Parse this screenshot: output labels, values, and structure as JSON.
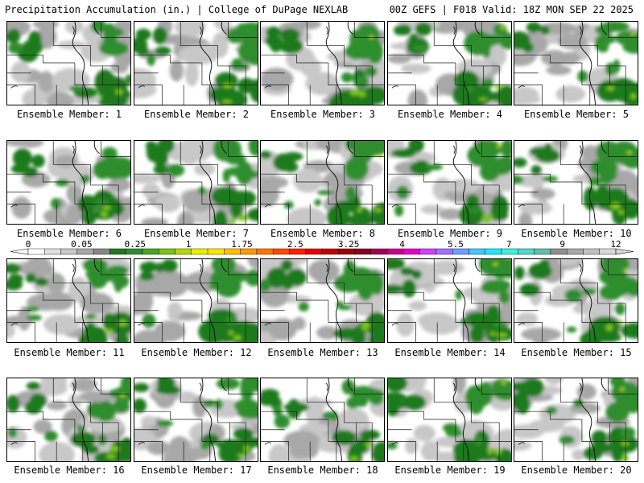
{
  "header": {
    "title_left": "Precipitation Accumulation (in.) | College of DuPage NEXLAB",
    "title_right": "00Z GEFS | F018 Valid: 18Z MON SEP 22 2025"
  },
  "panels": [
    {
      "caption": "Ensemble Member: 1"
    },
    {
      "caption": "Ensemble Member: 2"
    },
    {
      "caption": "Ensemble Member: 3"
    },
    {
      "caption": "Ensemble Member: 4"
    },
    {
      "caption": "Ensemble Member: 5"
    },
    {
      "caption": "Ensemble Member: 6"
    },
    {
      "caption": "Ensemble Member: 7"
    },
    {
      "caption": "Ensemble Member: 8"
    },
    {
      "caption": "Ensemble Member: 9"
    },
    {
      "caption": "Ensemble Member: 10"
    },
    {
      "caption": "Ensemble Member: 11"
    },
    {
      "caption": "Ensemble Member: 12"
    },
    {
      "caption": "Ensemble Member: 13"
    },
    {
      "caption": "Ensemble Member: 14"
    },
    {
      "caption": "Ensemble Member: 15"
    },
    {
      "caption": "Ensemble Member: 16"
    },
    {
      "caption": "Ensemble Member: 17"
    },
    {
      "caption": "Ensemble Member: 18"
    },
    {
      "caption": "Ensemble Member: 19"
    },
    {
      "caption": "Ensemble Member: 20"
    }
  ],
  "colorbar": {
    "labels": [
      "0",
      "0.05",
      "0.25",
      "1",
      "1.75",
      "2.5",
      "3.25",
      "4",
      "5.5",
      "7",
      "9",
      "12"
    ],
    "colors": [
      "#ffffff",
      "#e0e0e0",
      "#c8c8c8",
      "#a8a8a8",
      "#888888",
      "#1e7a1e",
      "#2e8e2e",
      "#46a628",
      "#7cc21a",
      "#b6d80a",
      "#e8ee00",
      "#ffe600",
      "#ffc000",
      "#ff9a00",
      "#ff7400",
      "#ff4a00",
      "#ff1e00",
      "#e40000",
      "#c00000",
      "#a00000",
      "#8a0020",
      "#a0005a",
      "#c8008c",
      "#e600c8",
      "#d040ff",
      "#a070ff",
      "#6ea0ff",
      "#40c8ff",
      "#20e6ff",
      "#40f0e0",
      "#50d8c8",
      "#60c0b0",
      "#909090",
      "#a8a8a8",
      "#c0c0c0",
      "#d8d8d8"
    ]
  }
}
